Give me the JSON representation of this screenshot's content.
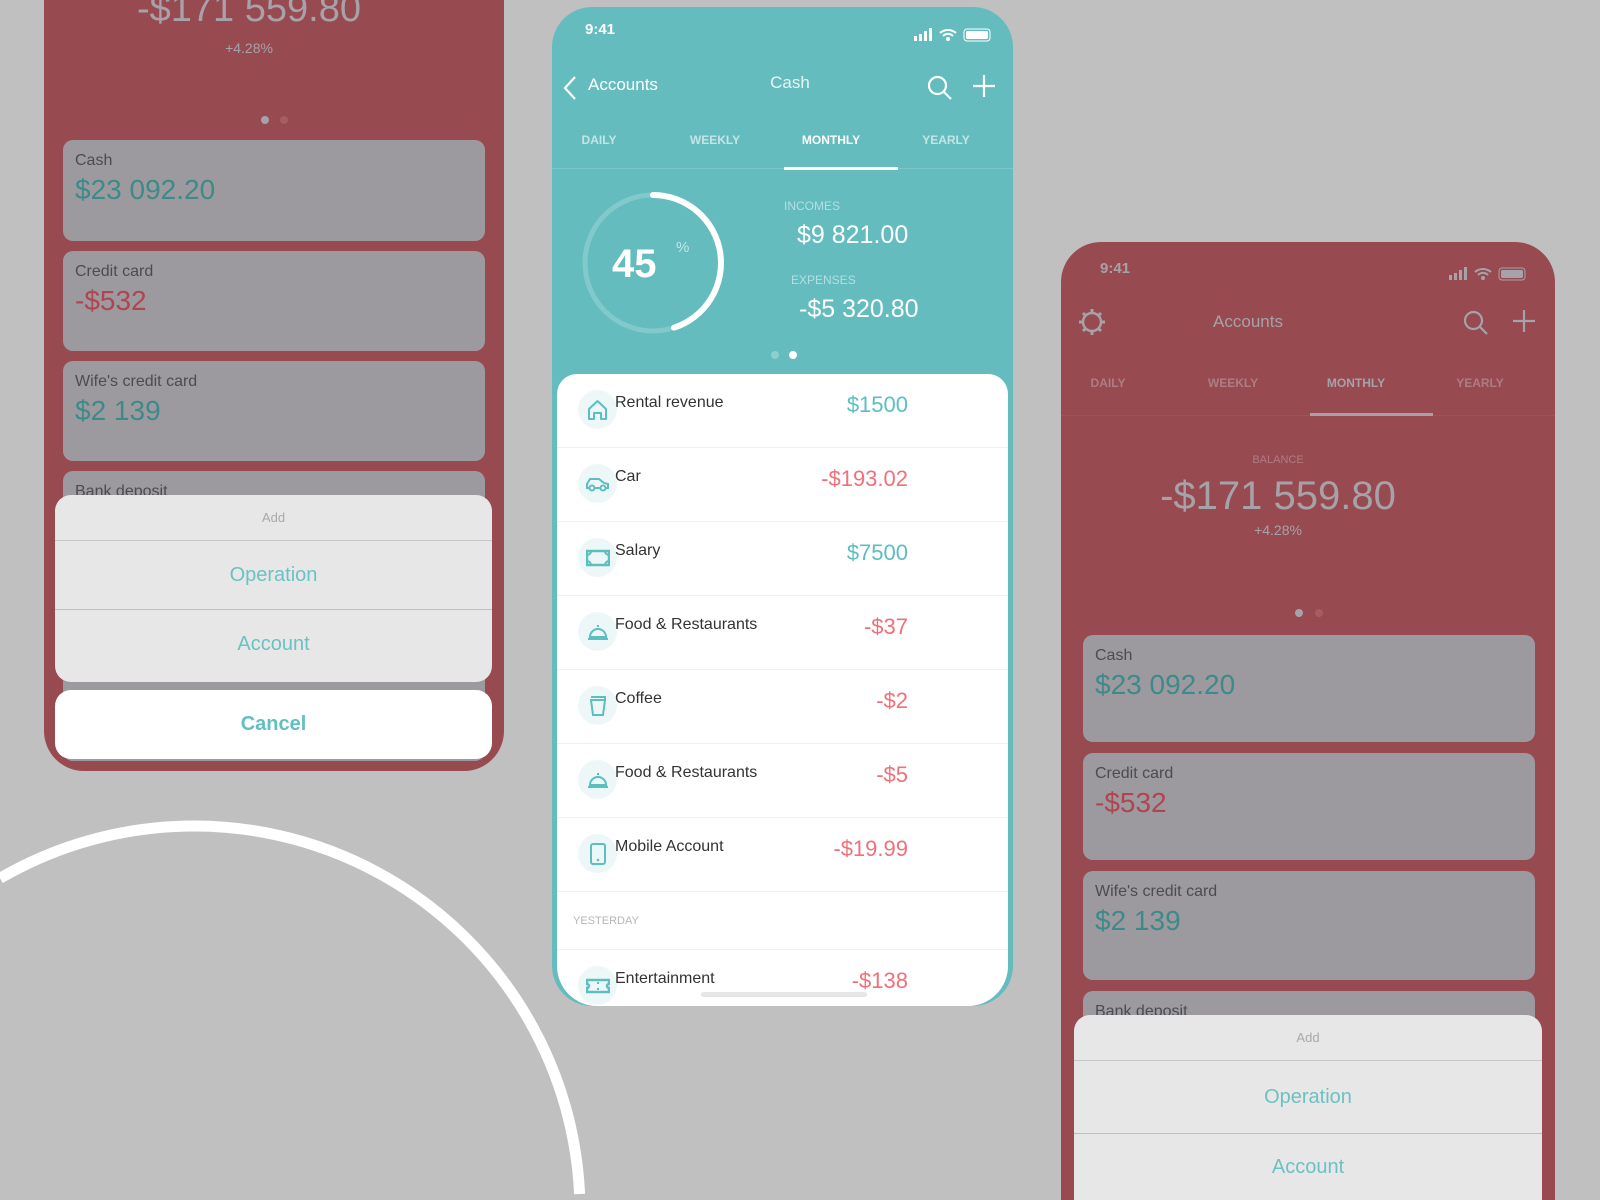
{
  "colors": {
    "background": "#c0c0c0",
    "teal": "#65bcbf",
    "red_dimmed": "#984a51",
    "income": "#5bbfc2",
    "expense": "#f0707a"
  },
  "left_phone": {
    "balance": "-$171 559.80",
    "change": "+4.28%",
    "accounts": [
      {
        "name": "Cash",
        "amount": "$23 092.20"
      },
      {
        "name": "Credit card",
        "amount": "-$532"
      },
      {
        "name": "Wife's credit card",
        "amount": "$2 139"
      },
      {
        "name": "Bank deposit"
      }
    ],
    "sheet": {
      "title": "Add",
      "options": [
        "Operation",
        "Account"
      ],
      "cancel": "Cancel"
    }
  },
  "center_phone": {
    "status_time": "9:41",
    "nav": {
      "back_label": "Accounts",
      "title": "Cash",
      "icons": [
        "chevron-left-icon",
        "search-icon",
        "plus-icon"
      ]
    },
    "tabs": [
      {
        "label": "DAILY"
      },
      {
        "label": "WEEKLY"
      },
      {
        "label": "MONTHLY",
        "active": true
      },
      {
        "label": "YEARLY"
      }
    ],
    "ring": {
      "value": "45",
      "unit": "%",
      "percent": 45
    },
    "incomes_label": "INCOMES",
    "incomes": "$9 821.00",
    "expenses_label": "EXPENSES",
    "expenses": "-$5 320.80",
    "page_indicator": {
      "pages": 2,
      "active": 2
    },
    "transactions": [
      {
        "name": "Rental revenue",
        "amount": "$1500",
        "type": "income",
        "icon": "house-icon"
      },
      {
        "name": "Car",
        "amount": "-$193.02",
        "type": "expense",
        "icon": "car-icon"
      },
      {
        "name": "Salary",
        "amount": "$7500",
        "type": "income",
        "icon": "banknote-icon"
      },
      {
        "name": "Food & Restaurants",
        "amount": "-$37",
        "type": "expense",
        "icon": "cloche-icon"
      },
      {
        "name": "Coffee",
        "amount": "-$2",
        "type": "expense",
        "icon": "cup-icon"
      },
      {
        "name": "Food & Restaurants",
        "amount": "-$5",
        "type": "expense",
        "icon": "cloche-icon"
      },
      {
        "name": "Mobile Account",
        "amount": "-$19.99",
        "type": "expense",
        "icon": "phone-icon"
      }
    ],
    "section_label": "YESTERDAY",
    "yesterday": [
      {
        "name": "Entertainment",
        "amount": "-$138",
        "type": "expense",
        "icon": "ticket-icon"
      }
    ]
  },
  "right_phone": {
    "status_time": "9:41",
    "nav": {
      "title": "Accounts",
      "icons": [
        "gear-icon",
        "search-icon",
        "plus-icon"
      ]
    },
    "tabs": [
      {
        "label": "DAILY"
      },
      {
        "label": "WEEKLY"
      },
      {
        "label": "MONTHLY",
        "active": true
      },
      {
        "label": "YEARLY"
      }
    ],
    "balance_label": "BALANCE",
    "balance": "-$171 559.80",
    "change": "+4.28%",
    "accounts": [
      {
        "name": "Cash",
        "amount": "$23 092.20"
      },
      {
        "name": "Credit card",
        "amount": "-$532"
      },
      {
        "name": "Wife's credit card",
        "amount": "$2 139"
      },
      {
        "name": "Bank deposit"
      }
    ],
    "sheet": {
      "title": "Add",
      "options": [
        "Operation",
        "Account"
      ]
    }
  }
}
